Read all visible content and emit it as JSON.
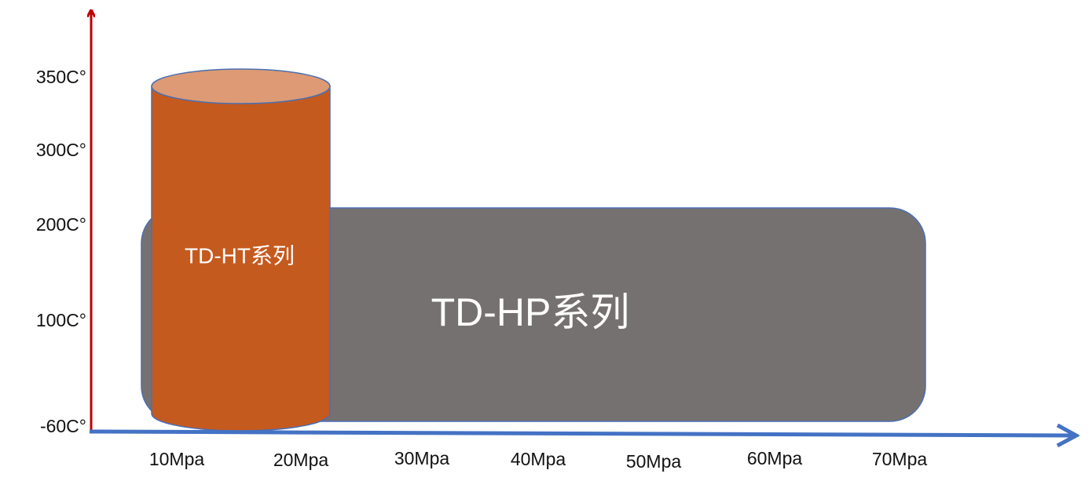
{
  "y_axis": {
    "labels": [
      "350C°",
      "300C°",
      "200C°",
      "100C°",
      "-60C°"
    ]
  },
  "x_axis": {
    "labels": [
      "10Mpa",
      "20Mpa",
      "30Mpa",
      "40Mpa",
      "50Mpa",
      "60Mpa",
      "70Mpa"
    ]
  },
  "shapes": {
    "hp": {
      "label": "TD-HP系列"
    },
    "ht": {
      "label": "TD-HT系列"
    }
  }
}
